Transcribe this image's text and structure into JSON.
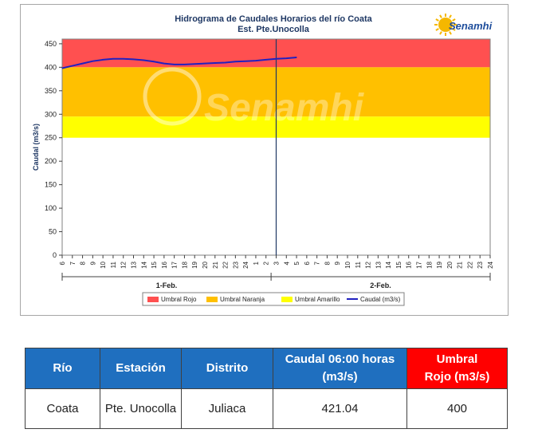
{
  "chart_data": {
    "type": "line",
    "title": "Hidrograma de Caudales Horarios del río Coata",
    "subtitle": "Est. Pte.Unocolla",
    "ylabel": "Caudal  (m3/s)",
    "ylim": [
      0,
      460
    ],
    "yticks": [
      0,
      50,
      100,
      150,
      200,
      250,
      300,
      350,
      400,
      450
    ],
    "xticks": [
      "6",
      "7",
      "8",
      "9",
      "10",
      "11",
      "12",
      "13",
      "14",
      "15",
      "16",
      "17",
      "18",
      "19",
      "20",
      "21",
      "22",
      "23",
      "24",
      "1",
      "2",
      "3",
      "4",
      "5",
      "6",
      "7",
      "8",
      "9",
      "10",
      "11",
      "12",
      "13",
      "14",
      "15",
      "16",
      "17",
      "18",
      "19",
      "20",
      "21",
      "22",
      "23",
      "24"
    ],
    "date_groups": [
      "1-Feb.",
      "2-Feb."
    ],
    "thresholds": [
      {
        "name": "Umbral Rojo",
        "from": 400,
        "to": 460,
        "color": "#ff5050"
      },
      {
        "name": "Umbral Naranja",
        "from": 295,
        "to": 400,
        "color": "#ffc000"
      },
      {
        "name": "Umbral Amarillo",
        "from": 250,
        "to": 295,
        "color": "#ffff00"
      }
    ],
    "series": [
      {
        "name": "Caudal (m3/s)",
        "color": "#2020c0",
        "values": [
          398,
          403,
          408,
          413,
          416,
          418,
          418,
          417,
          415,
          412,
          408,
          406,
          406,
          407,
          408,
          409,
          410,
          412,
          413,
          414,
          416,
          418,
          419,
          421.04
        ]
      }
    ],
    "legend": [
      "Umbral Rojo",
      "Umbral Naranja",
      "Umbral Amarillo",
      "Caudal (m3/s)"
    ],
    "legend_position": "bottom",
    "current_marker_tick": "3",
    "watermark": "Senamhi",
    "logo_text": "Senamhi"
  },
  "table": {
    "headers": [
      {
        "text": "Río",
        "style": "blue"
      },
      {
        "text": "Estación",
        "style": "blue"
      },
      {
        "text": "Distrito",
        "style": "blue"
      },
      {
        "text": "Caudal 06:00 horas (m3/s)",
        "line1": "Caudal 06:00 horas",
        "line2": "(m3/s)",
        "style": "blue"
      },
      {
        "text": "Umbral Rojo (m3/s)",
        "line1": "Umbral",
        "line2": "Rojo (m3/s)",
        "style": "red"
      }
    ],
    "row": [
      "Coata",
      "Pte. Unocolla",
      "Juliaca",
      "421.04",
      "400"
    ]
  }
}
